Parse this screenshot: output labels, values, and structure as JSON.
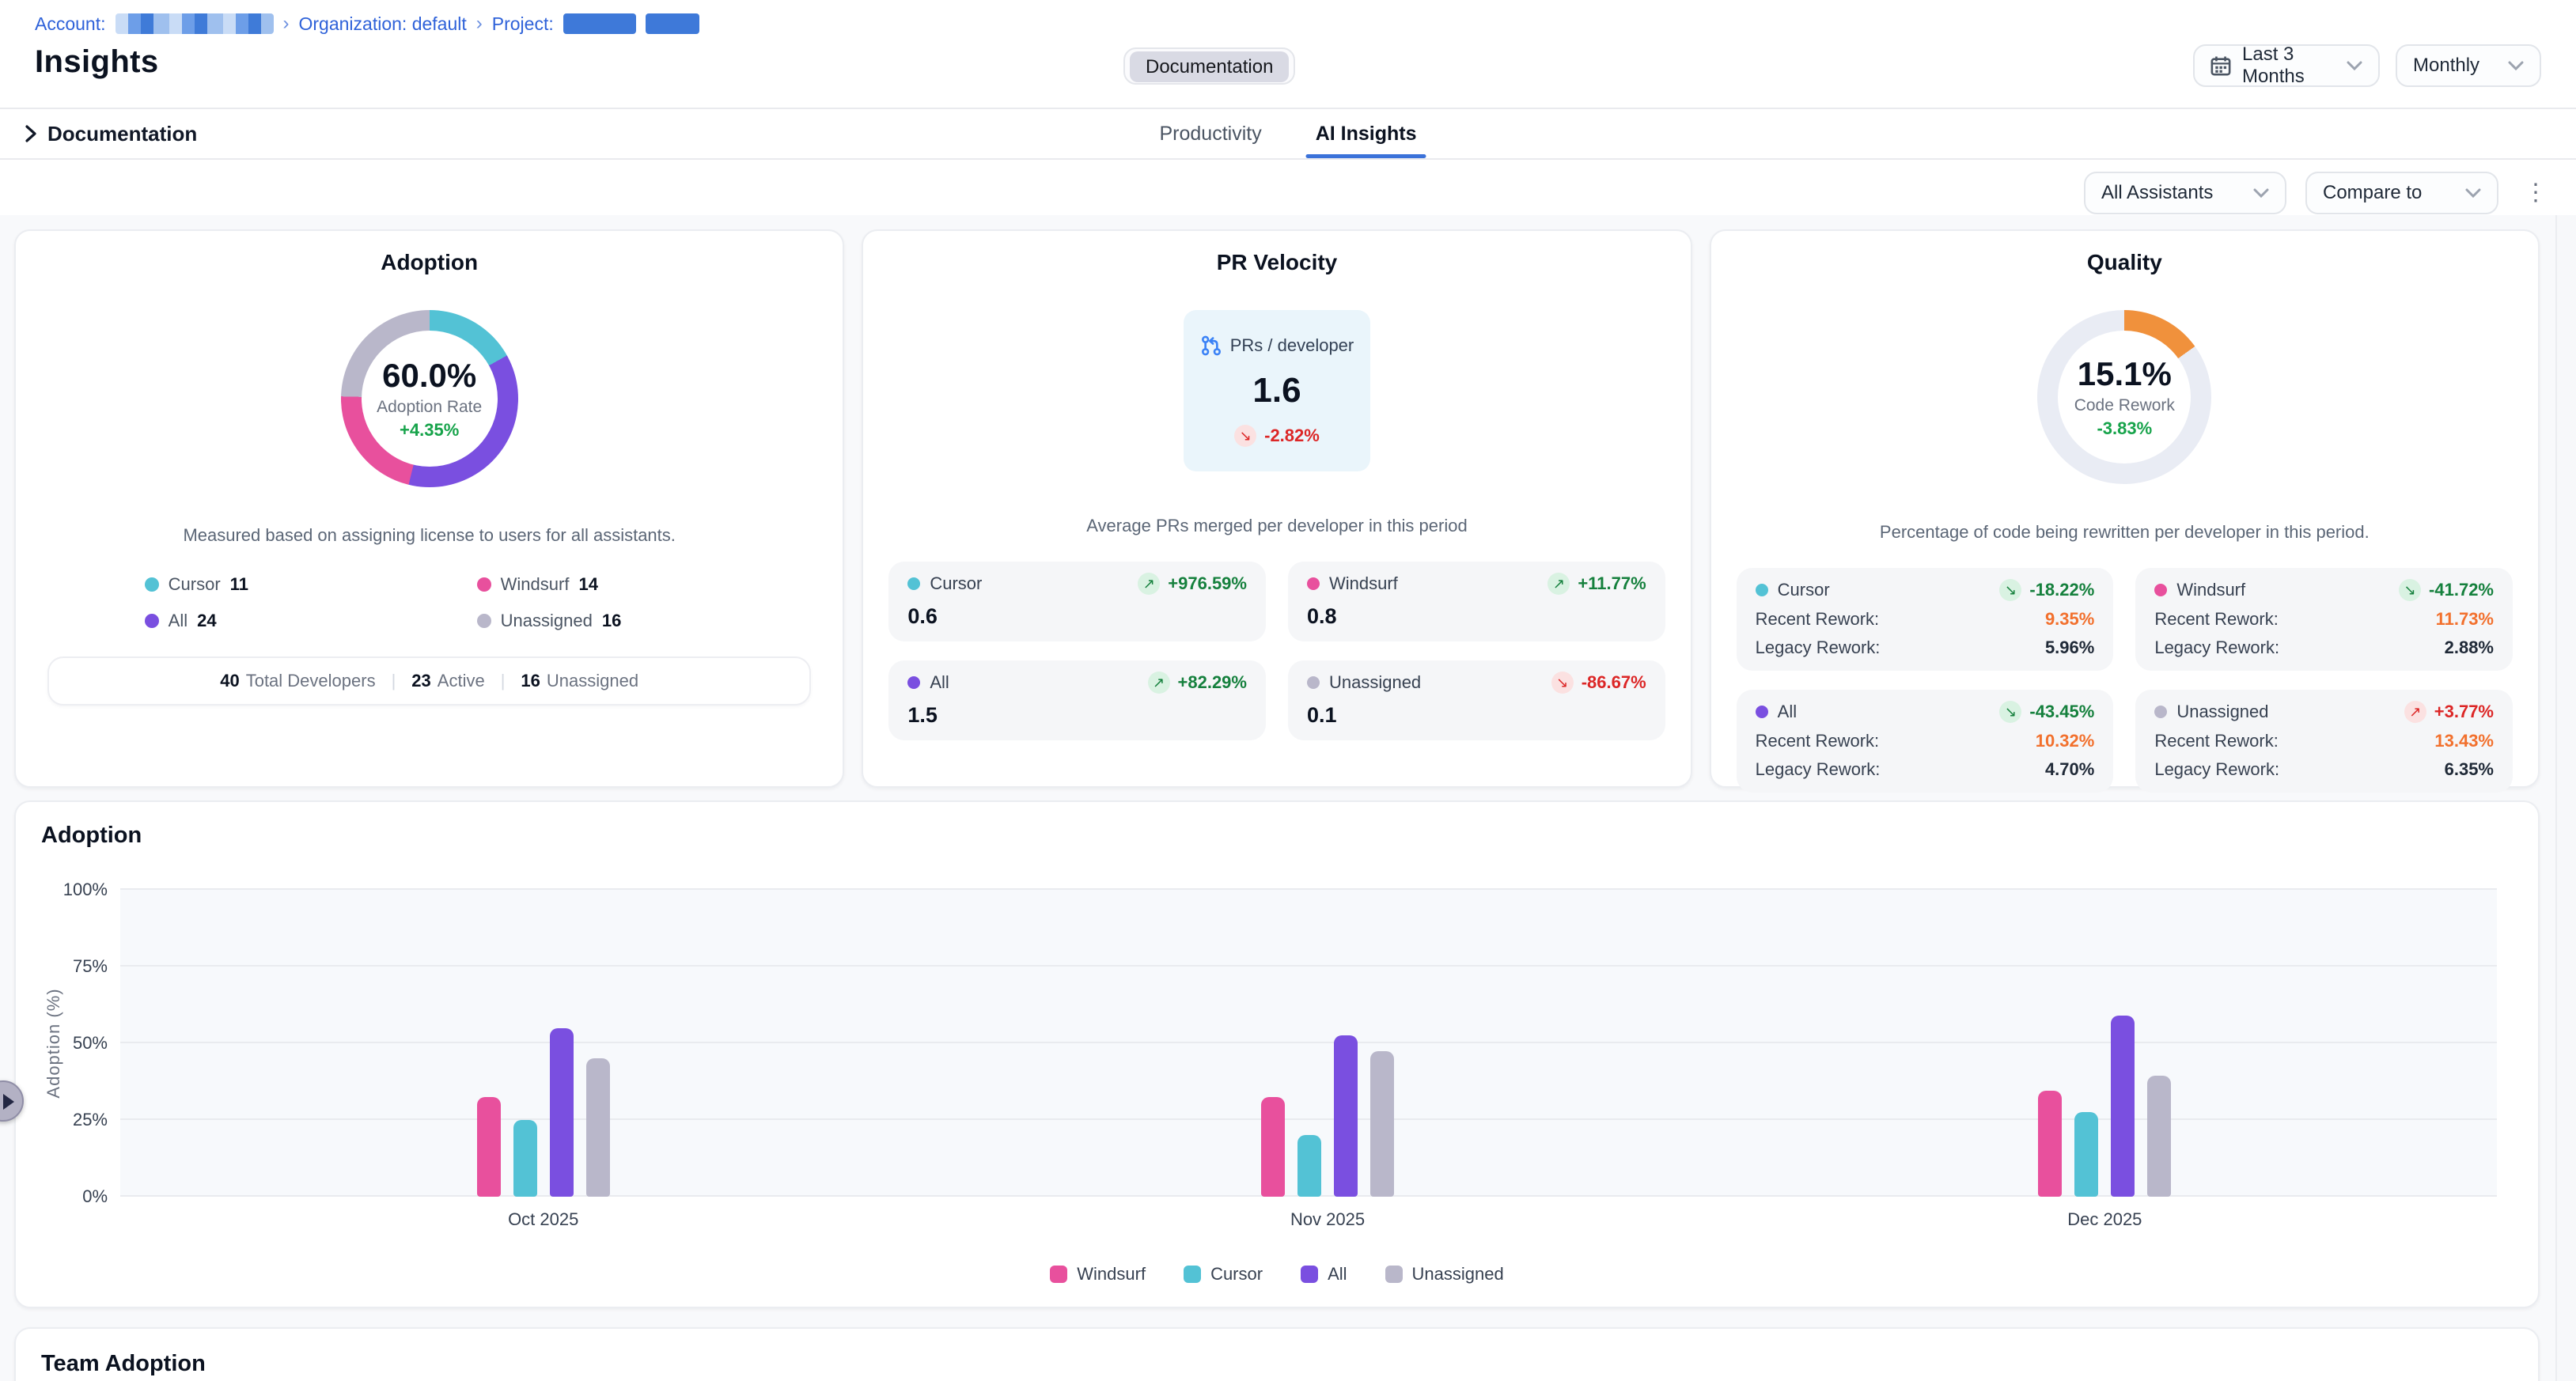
{
  "breadcrumb": {
    "account_label": "Account:",
    "organization": "Organization: default",
    "project_label": "Project:"
  },
  "page": {
    "title": "Insights"
  },
  "header": {
    "documentation_button": "Documentation",
    "date_range": "Last 3 Months",
    "granularity": "Monthly"
  },
  "section_bar": {
    "collapsible_label": "Documentation",
    "tabs": [
      "Productivity",
      "AI Insights"
    ],
    "active_tab": "AI Insights"
  },
  "filters": {
    "assistants": "All Assistants",
    "compare": "Compare to"
  },
  "series_colors": {
    "Windsurf": "#e8509d",
    "Cursor": "#53c2d5",
    "All": "#7a4fe0",
    "Unassigned": "#b9b7ca"
  },
  "summary_cards": {
    "adoption": {
      "title": "Adoption",
      "value": "60.0%",
      "label": "Adoption Rate",
      "delta": "+4.35%",
      "delta_tone": "good",
      "caption": "Measured based on assigning license to users for all assistants.",
      "donut_segments": [
        {
          "name": "Cursor",
          "color": "#53c2d5",
          "pct": 16.9
        },
        {
          "name": "All",
          "color": "#7a4fe0",
          "pct": 36.9
        },
        {
          "name": "Windsurf",
          "color": "#e8509d",
          "pct": 21.6
        },
        {
          "name": "Unassigned",
          "color": "#b9b7ca",
          "pct": 24.6
        }
      ],
      "legend": [
        {
          "name": "Cursor",
          "value": "11",
          "color": "#53c2d5"
        },
        {
          "name": "Windsurf",
          "value": "14",
          "color": "#e8509d"
        },
        {
          "name": "All",
          "value": "24",
          "color": "#7a4fe0"
        },
        {
          "name": "Unassigned",
          "value": "16",
          "color": "#b9b7ca"
        }
      ],
      "footer": [
        {
          "value": "40",
          "label": "Total Developers"
        },
        {
          "value": "23",
          "label": "Active"
        },
        {
          "value": "16",
          "label": "Unassigned"
        }
      ]
    },
    "pr_velocity": {
      "title": "PR Velocity",
      "metric_label": "PRs / developer",
      "value": "1.6",
      "delta": "-2.82%",
      "delta_dir": "down",
      "delta_tone": "bad",
      "caption": "Average PRs merged per developer in this period",
      "tiles": [
        {
          "name": "Cursor",
          "color": "#53c2d5",
          "delta": "+976.59%",
          "dir": "up",
          "tone": "good",
          "value": "0.6"
        },
        {
          "name": "Windsurf",
          "color": "#e8509d",
          "delta": "+11.77%",
          "dir": "up",
          "tone": "good",
          "value": "0.8"
        },
        {
          "name": "All",
          "color": "#7a4fe0",
          "delta": "+82.29%",
          "dir": "up",
          "tone": "good",
          "value": "1.5"
        },
        {
          "name": "Unassigned",
          "color": "#b9b7ca",
          "delta": "-86.67%",
          "dir": "down",
          "tone": "bad",
          "value": "0.1"
        }
      ]
    },
    "quality": {
      "title": "Quality",
      "value": "15.1%",
      "label": "Code Rework",
      "delta": "-3.83%",
      "delta_tone": "good",
      "caption": "Percentage of code being rewritten per developer in this period.",
      "donut_pct": 15.1,
      "donut_color": "#f0913c",
      "donut_track": "#e9ecf4",
      "recent_label": "Recent Rework:",
      "legacy_label": "Legacy Rework:",
      "tiles": [
        {
          "name": "Cursor",
          "color": "#53c2d5",
          "delta": "-18.22%",
          "dir": "down",
          "tone": "good",
          "recent": "9.35%",
          "legacy": "5.96%"
        },
        {
          "name": "Windsurf",
          "color": "#e8509d",
          "delta": "-41.72%",
          "dir": "down",
          "tone": "good",
          "recent": "11.73%",
          "legacy": "2.88%"
        },
        {
          "name": "All",
          "color": "#7a4fe0",
          "delta": "-43.45%",
          "dir": "down",
          "tone": "good",
          "recent": "10.32%",
          "legacy": "4.70%"
        },
        {
          "name": "Unassigned",
          "color": "#b9b7ca",
          "delta": "+3.77%",
          "dir": "up",
          "tone": "bad",
          "recent": "13.43%",
          "legacy": "6.35%"
        }
      ]
    }
  },
  "chart_data": {
    "type": "bar",
    "title": "Adoption",
    "ylabel": "Adoption (%)",
    "ylim": [
      0,
      100
    ],
    "yticks": [
      0,
      25,
      50,
      75,
      100
    ],
    "ytick_labels": [
      "0%",
      "25%",
      "50%",
      "75%",
      "100%"
    ],
    "categories": [
      "Oct 2025",
      "Nov 2025",
      "Dec 2025"
    ],
    "series": [
      {
        "name": "Windsurf",
        "color": "#e8509d",
        "values": [
          32.5,
          32.5,
          34.5
        ]
      },
      {
        "name": "Cursor",
        "color": "#53c2d5",
        "values": [
          25,
          20,
          27.5
        ]
      },
      {
        "name": "All",
        "color": "#7a4fe0",
        "values": [
          55,
          52.5,
          59
        ]
      },
      {
        "name": "Unassigned",
        "color": "#b9b7ca",
        "values": [
          45,
          47.5,
          39.5
        ]
      }
    ],
    "grid": true,
    "legend_position": "bottom"
  },
  "team_adoption": {
    "title": "Team Adoption"
  }
}
